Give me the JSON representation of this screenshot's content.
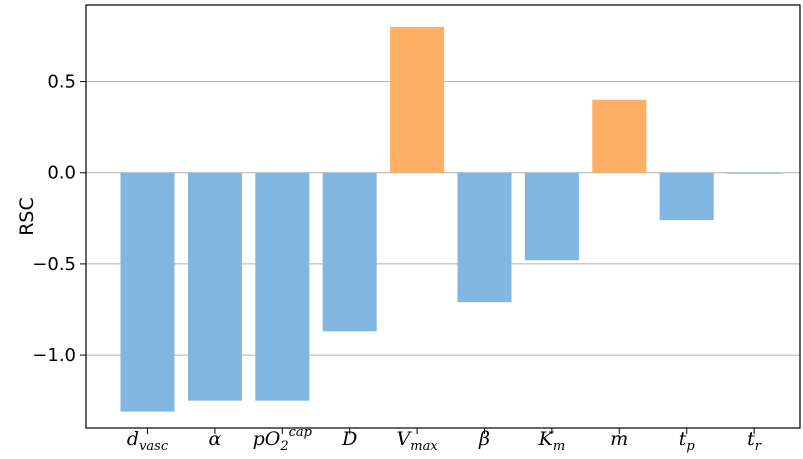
{
  "chart_data": {
    "type": "bar",
    "ylabel": "RSC",
    "xlabel": "",
    "title": "",
    "ylim": [
      -1.4,
      0.92
    ],
    "yticks": [
      0.5,
      0.0,
      -0.5,
      -1.0
    ],
    "ytick_labels": [
      "0.5",
      "0.0",
      "−0.5",
      "−1.0"
    ],
    "grid": "horizontal",
    "colors": {
      "positive": "#ffae66",
      "negative": "#80b6df"
    },
    "categories": [
      {
        "base": "d",
        "sub": "vasc",
        "sup": ""
      },
      {
        "base": "α",
        "sub": "",
        "sup": ""
      },
      {
        "base": "pO",
        "sub": "2",
        "sup": "cap"
      },
      {
        "base": "D",
        "sub": "",
        "sup": ""
      },
      {
        "base": "V",
        "sub": "max",
        "sup": ""
      },
      {
        "base": "β",
        "sub": "",
        "sup": ""
      },
      {
        "base": "K",
        "sub": "m",
        "sup": ""
      },
      {
        "base": "m",
        "sub": "",
        "sup": ""
      },
      {
        "base": "t",
        "sub": "p",
        "sup": ""
      },
      {
        "base": "t",
        "sub": "r",
        "sup": ""
      }
    ],
    "values": [
      -1.31,
      -1.25,
      -1.25,
      -0.87,
      0.8,
      -0.71,
      -0.48,
      0.4,
      -0.26,
      -0.005
    ]
  }
}
